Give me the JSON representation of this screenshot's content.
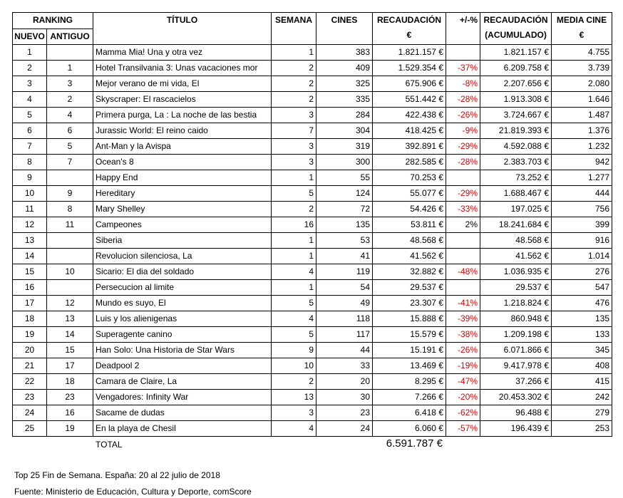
{
  "header": {
    "ranking": "RANKING",
    "nuevo": "NUEVO",
    "antiguo": "ANTIGUO",
    "columns": [
      [
        "TÍTULO"
      ],
      [
        "SEMANA"
      ],
      [
        "CINES"
      ],
      [
        "RECAUDACIÓN",
        "€"
      ],
      [
        "+/-%"
      ],
      [
        "RECAUDACIÓN",
        "(ACUMULADO)"
      ],
      [
        "MEDIA CINE",
        "€"
      ]
    ]
  },
  "rows": [
    [
      "1",
      null,
      "Mamma Mia! Una y otra vez",
      "1",
      "383",
      "1.821.157 €",
      null,
      "1.821.157 €",
      "4.755"
    ],
    [
      "2",
      "1",
      "Hotel Transilvania 3: Unas vacaciones mor",
      "2",
      "409",
      "1.529.354 €",
      "-37%",
      "6.209.758 €",
      "3.739"
    ],
    [
      "3",
      "3",
      "Mejor verano de mi vida, El",
      "2",
      "325",
      "675.906 €",
      "-8%",
      "2.207.656 €",
      "2.080"
    ],
    [
      "4",
      "2",
      "Skyscraper: El rascacielos",
      "2",
      "335",
      "551.442 €",
      "-28%",
      "1.913.308 €",
      "1.646"
    ],
    [
      "5",
      "4",
      "Primera purga, La : La noche de las bestia",
      "3",
      "284",
      "422.438 €",
      "-26%",
      "3.724.667 €",
      "1.487"
    ],
    [
      "6",
      "6",
      "Jurassic World: El reino caido",
      "7",
      "304",
      "418.425 €",
      "-9%",
      "21.819.393 €",
      "1.376"
    ],
    [
      "7",
      "5",
      "Ant-Man y la Avispa",
      "3",
      "319",
      "392.891 €",
      "-29%",
      "4.592.088 €",
      "1.232"
    ],
    [
      "8",
      "7",
      "Ocean's 8",
      "3",
      "300",
      "282.585 €",
      "-28%",
      "2.383.703 €",
      "942"
    ],
    [
      "9",
      null,
      "Happy End",
      "1",
      "55",
      "70.253 €",
      null,
      "73.252 €",
      "1.277"
    ],
    [
      "10",
      "9",
      "Hereditary",
      "5",
      "124",
      "55.077 €",
      "-29%",
      "1.688.467 €",
      "444"
    ],
    [
      "11",
      "8",
      "Mary Shelley",
      "2",
      "72",
      "54.426 €",
      "-33%",
      "197.025 €",
      "756"
    ],
    [
      "12",
      "11",
      "Campeones",
      "16",
      "135",
      "53.811 €",
      "2%",
      "18.241.684 €",
      "399"
    ],
    [
      "13",
      null,
      "Siberia",
      "1",
      "53",
      "48.568 €",
      null,
      "48.568 €",
      "916"
    ],
    [
      "14",
      null,
      "Revolucion silenciosa, La",
      "1",
      "41",
      "41.562 €",
      null,
      "41.562 €",
      "1.014"
    ],
    [
      "15",
      "10",
      "Sicario: El dia del soldado",
      "4",
      "119",
      "32.882 €",
      "-48%",
      "1.036.935 €",
      "276"
    ],
    [
      "16",
      null,
      "Persecucion al limite",
      "1",
      "54",
      "29.537 €",
      null,
      "29.537 €",
      "547"
    ],
    [
      "17",
      "12",
      "Mundo es suyo, El",
      "5",
      "49",
      "23.307 €",
      "-41%",
      "1.218.824 €",
      "476"
    ],
    [
      "18",
      "13",
      "Luis y los alienigenas",
      "4",
      "118",
      "15.888 €",
      "-39%",
      "860.948 €",
      "135"
    ],
    [
      "19",
      "14",
      "Superagente canino",
      "5",
      "117",
      "15.579 €",
      "-38%",
      "1.209.198 €",
      "133"
    ],
    [
      "20",
      "15",
      "Han Solo: Una Historia de Star Wars",
      "9",
      "44",
      "15.191 €",
      "-26%",
      "6.071.866 €",
      "345"
    ],
    [
      "21",
      "17",
      "Deadpool 2",
      "10",
      "33",
      "13.469 €",
      "-19%",
      "9.417.978 €",
      "408"
    ],
    [
      "22",
      "18",
      "Camara de Claire, La",
      "2",
      "20",
      "8.295 €",
      "-47%",
      "37.266 €",
      "415"
    ],
    [
      "23",
      "23",
      "Vengadores: Infinity War",
      "13",
      "30",
      "7.266 €",
      "-20%",
      "20.453.302 €",
      "242"
    ],
    [
      "24",
      "16",
      "Sacame de dudas",
      "3",
      "23",
      "6.418 €",
      "-62%",
      "96.488 €",
      "279"
    ],
    [
      "25",
      "19",
      "En la playa de Chesil",
      "4",
      "24",
      "6.060 €",
      "-57%",
      "196.439 €",
      "253"
    ]
  ],
  "total": {
    "label": "TOTAL",
    "value": "6.591.787 €"
  },
  "footer": [
    "Top 25 Fin de Semana. España: 20 al 22 julio de 2018",
    "Fuente: Ministerio de Educación, Cultura y Deporte, comScore"
  ]
}
